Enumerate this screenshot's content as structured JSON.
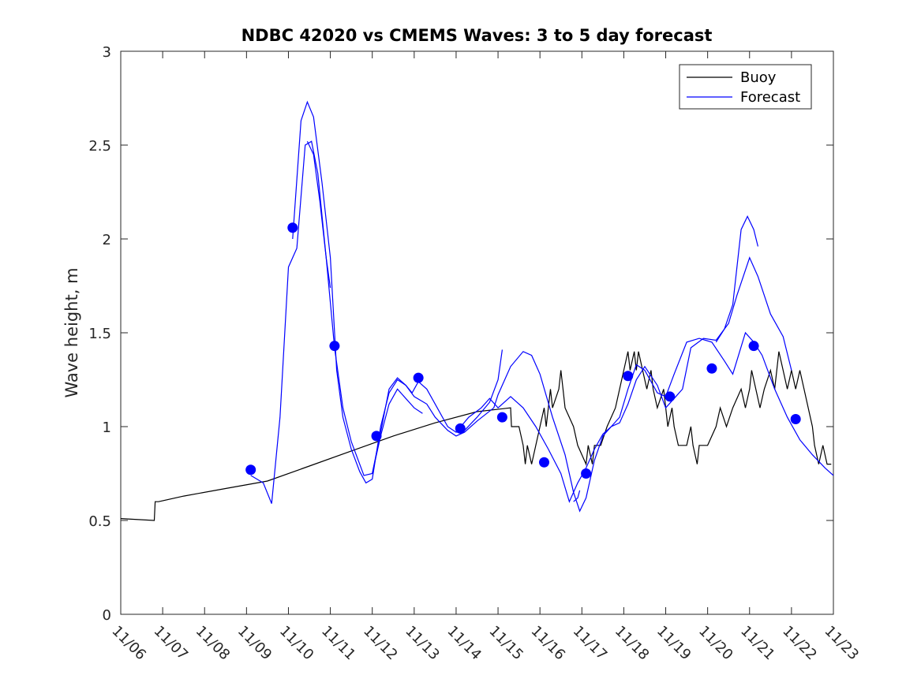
{
  "chart_data": {
    "type": "line",
    "title": "NDBC 42020 vs CMEMS Waves: 3 to 5 day forecast",
    "xlabel": "",
    "ylabel": "Wave height, m",
    "xlim": [
      0,
      17
    ],
    "ylim": [
      0,
      3
    ],
    "x_tick_values": [
      0,
      1,
      2,
      3,
      4,
      5,
      6,
      7,
      8,
      9,
      10,
      11,
      12,
      13,
      14,
      15,
      16,
      17
    ],
    "x_tick_labels": [
      "11/06",
      "11/07",
      "11/08",
      "11/09",
      "11/10",
      "11/11",
      "11/12",
      "11/13",
      "11/14",
      "11/15",
      "11/16",
      "11/17",
      "11/18",
      "11/19",
      "11/20",
      "11/21",
      "11/22",
      "11/23"
    ],
    "y_ticks": [
      0,
      0.5,
      1,
      1.5,
      2,
      2.5,
      3
    ],
    "y_tick_labels": [
      "0",
      "0.5",
      "1",
      "1.5",
      "2",
      "2.5",
      "3"
    ],
    "legend": {
      "location": "top-right",
      "entries": [
        {
          "label": "Buoy",
          "color": "#000000"
        },
        {
          "label": "Forecast",
          "color": "#0000ff"
        }
      ]
    },
    "series": [
      {
        "name": "Buoy",
        "color": "#000000",
        "points": [
          [
            0,
            0.51
          ],
          [
            0.8,
            0.5
          ],
          [
            0.82,
            0.6
          ],
          [
            0.9,
            0.6
          ],
          [
            1.5,
            0.63
          ],
          [
            2.5,
            0.67
          ],
          [
            3.5,
            0.71
          ],
          [
            4.5,
            0.79
          ],
          [
            5.5,
            0.87
          ],
          [
            6.5,
            0.95
          ],
          [
            7.5,
            1.02
          ],
          [
            8.5,
            1.08
          ],
          [
            9.3,
            1.1
          ],
          [
            9.32,
            1.0
          ],
          [
            9.5,
            1.0
          ],
          [
            9.6,
            0.9
          ],
          [
            9.65,
            0.8
          ],
          [
            9.7,
            0.9
          ],
          [
            9.8,
            0.8
          ],
          [
            9.9,
            0.9
          ],
          [
            10.0,
            1.0
          ],
          [
            10.1,
            1.1
          ],
          [
            10.15,
            1.0
          ],
          [
            10.25,
            1.2
          ],
          [
            10.3,
            1.1
          ],
          [
            10.45,
            1.2
          ],
          [
            10.5,
            1.3
          ],
          [
            10.55,
            1.2
          ],
          [
            10.6,
            1.1
          ],
          [
            10.8,
            1.0
          ],
          [
            10.9,
            0.9
          ],
          [
            11.1,
            0.8
          ],
          [
            11.15,
            0.9
          ],
          [
            11.25,
            0.8
          ],
          [
            11.3,
            0.9
          ],
          [
            11.45,
            0.9
          ],
          [
            11.6,
            1.0
          ],
          [
            11.8,
            1.1
          ],
          [
            11.9,
            1.2
          ],
          [
            12.0,
            1.3
          ],
          [
            12.1,
            1.4
          ],
          [
            12.15,
            1.3
          ],
          [
            12.25,
            1.4
          ],
          [
            12.3,
            1.3
          ],
          [
            12.35,
            1.4
          ],
          [
            12.45,
            1.3
          ],
          [
            12.55,
            1.2
          ],
          [
            12.65,
            1.3
          ],
          [
            12.7,
            1.2
          ],
          [
            12.8,
            1.1
          ],
          [
            12.95,
            1.2
          ],
          [
            13.05,
            1.0
          ],
          [
            13.15,
            1.1
          ],
          [
            13.2,
            1.0
          ],
          [
            13.3,
            0.9
          ],
          [
            13.5,
            0.9
          ],
          [
            13.6,
            1.0
          ],
          [
            13.65,
            0.9
          ],
          [
            13.75,
            0.8
          ],
          [
            13.8,
            0.9
          ],
          [
            14.0,
            0.9
          ],
          [
            14.2,
            1.0
          ],
          [
            14.3,
            1.1
          ],
          [
            14.45,
            1.0
          ],
          [
            14.6,
            1.1
          ],
          [
            14.8,
            1.2
          ],
          [
            14.9,
            1.1
          ],
          [
            15.0,
            1.2
          ],
          [
            15.05,
            1.3
          ],
          [
            15.15,
            1.2
          ],
          [
            15.25,
            1.1
          ],
          [
            15.35,
            1.2
          ],
          [
            15.5,
            1.3
          ],
          [
            15.6,
            1.2
          ],
          [
            15.7,
            1.4
          ],
          [
            15.8,
            1.3
          ],
          [
            15.9,
            1.2
          ],
          [
            16.0,
            1.3
          ],
          [
            16.1,
            1.2
          ],
          [
            16.2,
            1.3
          ],
          [
            16.3,
            1.2
          ],
          [
            16.4,
            1.1
          ],
          [
            16.5,
            1.0
          ],
          [
            16.55,
            0.9
          ],
          [
            16.65,
            0.8
          ],
          [
            16.75,
            0.9
          ],
          [
            16.85,
            0.8
          ],
          [
            16.95,
            0.8
          ]
        ]
      },
      {
        "name": "Forecast",
        "color": "#0000ff",
        "points": [
          [
            3.1,
            0.74
          ],
          [
            3.4,
            0.7
          ],
          [
            3.6,
            0.59
          ],
          [
            3.8,
            1.05
          ],
          [
            4.0,
            1.85
          ],
          [
            4.2,
            1.95
          ],
          [
            4.4,
            2.5
          ],
          [
            4.55,
            2.52
          ],
          [
            4.7,
            2.35
          ],
          [
            4.9,
            1.9
          ],
          [
            5.1,
            1.42
          ],
          [
            5.3,
            1.1
          ],
          [
            5.5,
            0.92
          ],
          [
            5.8,
            0.74
          ],
          [
            6.0,
            0.75
          ],
          [
            6.2,
            0.97
          ],
          [
            6.4,
            1.2
          ],
          [
            6.6,
            1.26
          ],
          [
            6.8,
            1.22
          ],
          [
            6.95,
            1.18
          ],
          [
            7.1,
            1.24
          ],
          [
            7.3,
            1.2
          ],
          [
            7.5,
            1.12
          ],
          [
            7.8,
            1.0
          ],
          [
            8.0,
            0.97
          ],
          [
            8.3,
            1.05
          ],
          [
            8.6,
            1.1
          ],
          [
            8.8,
            1.15
          ],
          [
            9.0,
            1.1
          ],
          [
            9.3,
            1.16
          ],
          [
            9.6,
            1.1
          ],
          [
            9.9,
            1.0
          ],
          [
            10.2,
            0.88
          ],
          [
            10.5,
            0.75
          ],
          [
            10.7,
            0.6
          ],
          [
            10.9,
            0.7
          ],
          [
            11.1,
            0.78
          ],
          [
            11.3,
            0.88
          ],
          [
            11.5,
            0.96
          ],
          [
            11.7,
            1.0
          ],
          [
            11.9,
            1.05
          ],
          [
            12.1,
            1.2
          ],
          [
            12.3,
            1.33
          ],
          [
            12.5,
            1.3
          ],
          [
            12.8,
            1.18
          ],
          [
            13.0,
            1.16
          ],
          [
            13.2,
            1.28
          ],
          [
            13.5,
            1.45
          ],
          [
            13.8,
            1.47
          ],
          [
            14.1,
            1.45
          ],
          [
            14.4,
            1.35
          ],
          [
            14.6,
            1.28
          ],
          [
            14.9,
            1.5
          ],
          [
            15.1,
            1.45
          ],
          [
            15.3,
            1.38
          ],
          [
            15.6,
            1.2
          ],
          [
            15.9,
            1.05
          ],
          [
            16.2,
            0.93
          ],
          [
            16.5,
            0.85
          ],
          [
            16.8,
            0.78
          ],
          [
            17.0,
            0.74
          ]
        ]
      },
      {
        "name": "Forecast",
        "color": "#0000ff",
        "points": [
          [
            4.1,
            2.0
          ],
          [
            4.3,
            2.63
          ],
          [
            4.45,
            2.73
          ],
          [
            4.6,
            2.65
          ],
          [
            4.8,
            2.3
          ],
          [
            5.0,
            1.9
          ],
          [
            5.15,
            1.3
          ],
          [
            5.3,
            1.05
          ],
          [
            5.5,
            0.88
          ],
          [
            5.7,
            0.76
          ],
          [
            5.85,
            0.7
          ],
          [
            6.0,
            0.72
          ],
          [
            6.2,
            1.0
          ],
          [
            6.4,
            1.18
          ],
          [
            6.6,
            1.25
          ],
          [
            6.8,
            1.22
          ],
          [
            7.0,
            1.16
          ],
          [
            7.3,
            1.12
          ],
          [
            7.5,
            1.05
          ],
          [
            7.8,
            0.98
          ],
          [
            8.0,
            0.95
          ],
          [
            8.2,
            0.97
          ],
          [
            8.5,
            1.03
          ],
          [
            8.9,
            1.1
          ],
          [
            9.0,
            1.17
          ],
          [
            9.3,
            1.32
          ],
          [
            9.6,
            1.4
          ],
          [
            9.8,
            1.38
          ],
          [
            10.0,
            1.28
          ],
          [
            10.3,
            1.05
          ],
          [
            10.6,
            0.85
          ],
          [
            10.8,
            0.65
          ],
          [
            10.95,
            0.55
          ],
          [
            11.1,
            0.62
          ],
          [
            11.3,
            0.82
          ],
          [
            11.5,
            0.95
          ],
          [
            11.7,
            1.0
          ],
          [
            11.9,
            1.02
          ],
          [
            12.1,
            1.12
          ],
          [
            12.3,
            1.25
          ],
          [
            12.5,
            1.32
          ],
          [
            12.8,
            1.22
          ],
          [
            13.0,
            1.1
          ],
          [
            13.2,
            1.15
          ],
          [
            13.4,
            1.2
          ],
          [
            13.6,
            1.42
          ],
          [
            13.9,
            1.47
          ],
          [
            14.2,
            1.46
          ],
          [
            14.5,
            1.55
          ],
          [
            14.7,
            1.7
          ],
          [
            15.0,
            1.9
          ],
          [
            15.2,
            1.8
          ],
          [
            15.5,
            1.6
          ],
          [
            15.8,
            1.48
          ],
          [
            16.0,
            1.3
          ]
        ]
      },
      {
        "name": "Forecast",
        "color": "#0000ff",
        "points": [
          [
            4.45,
            2.52
          ],
          [
            4.6,
            2.45
          ],
          [
            4.75,
            2.2
          ],
          [
            4.9,
            1.9
          ],
          [
            5.0,
            1.74
          ]
        ]
      },
      {
        "name": "Forecast",
        "color": "#0000ff",
        "points": [
          [
            6.0,
            0.75
          ],
          [
            6.2,
            0.95
          ],
          [
            6.4,
            1.12
          ],
          [
            6.6,
            1.2
          ],
          [
            6.8,
            1.15
          ],
          [
            7.0,
            1.1
          ],
          [
            7.2,
            1.07
          ]
        ]
      },
      {
        "name": "Forecast",
        "color": "#0000ff",
        "points": [
          [
            8.0,
            0.97
          ],
          [
            8.2,
            0.98
          ],
          [
            8.5,
            1.05
          ],
          [
            8.8,
            1.13
          ],
          [
            9.0,
            1.25
          ],
          [
            9.1,
            1.41
          ]
        ]
      },
      {
        "name": "Forecast",
        "color": "#0000ff",
        "points": [
          [
            14.2,
            1.45
          ],
          [
            14.4,
            1.52
          ],
          [
            14.6,
            1.65
          ],
          [
            14.8,
            2.05
          ],
          [
            14.95,
            2.12
          ],
          [
            15.1,
            2.05
          ],
          [
            15.2,
            1.96
          ]
        ]
      },
      {
        "name": "Forecast",
        "color": "#0000ff",
        "points": [
          [
            10.8,
            0.6
          ],
          [
            10.9,
            0.62
          ],
          [
            10.95,
            0.66
          ]
        ]
      }
    ],
    "markers": {
      "name": "Forecast",
      "color": "#0000ff",
      "points": [
        [
          3.1,
          0.77
        ],
        [
          4.1,
          2.06
        ],
        [
          5.1,
          1.43
        ],
        [
          6.1,
          0.95
        ],
        [
          7.1,
          1.26
        ],
        [
          8.1,
          0.99
        ],
        [
          9.1,
          1.05
        ],
        [
          10.1,
          0.81
        ],
        [
          11.1,
          0.75
        ],
        [
          12.1,
          1.27
        ],
        [
          13.1,
          1.16
        ],
        [
          14.1,
          1.31
        ],
        [
          15.1,
          1.43
        ],
        [
          16.1,
          1.04
        ]
      ]
    }
  }
}
